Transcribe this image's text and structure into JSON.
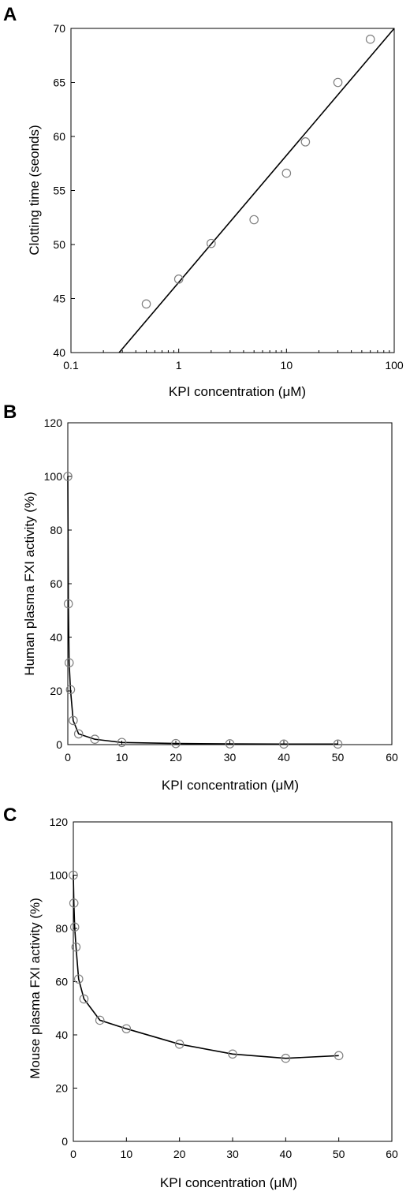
{
  "chart_data": [
    {
      "panel": "A",
      "type": "scatter",
      "xscale": "log",
      "xlabel": "KPI concentration (μM)",
      "ylabel": "Clotting time (seonds)",
      "xlim": [
        0.1,
        100
      ],
      "ylim": [
        40,
        70
      ],
      "xticks": [
        "0.1",
        "1",
        "10",
        "100"
      ],
      "yticks": [
        "40",
        "45",
        "50",
        "55",
        "60",
        "65",
        "70"
      ],
      "points": {
        "x": [
          0.5,
          1,
          2,
          5,
          10,
          15,
          30,
          60
        ],
        "y": [
          44.5,
          46.8,
          50.1,
          52.3,
          56.6,
          59.5,
          65.0,
          69.0
        ]
      },
      "fit_line": {
        "x": [
          0.28,
          100
        ],
        "y": [
          40,
          70
        ]
      }
    },
    {
      "panel": "B",
      "type": "line",
      "xscale": "linear",
      "xlabel": "KPI concentration (μM)",
      "ylabel": "Human plasma FXI activity (%)",
      "xlim": [
        0,
        60
      ],
      "ylim": [
        0,
        120
      ],
      "xticks": [
        "0",
        "10",
        "20",
        "30",
        "40",
        "50",
        "60"
      ],
      "yticks": [
        "0",
        "20",
        "40",
        "60",
        "80",
        "100",
        "120"
      ],
      "points": {
        "x": [
          0,
          0.1,
          0.25,
          0.5,
          1,
          2,
          5,
          10,
          20,
          30,
          40,
          50
        ],
        "y": [
          100,
          52.5,
          30.5,
          20.5,
          9,
          4,
          2,
          0.8,
          0.4,
          0.3,
          0.2,
          0.2
        ]
      }
    },
    {
      "panel": "C",
      "type": "line",
      "xscale": "linear",
      "xlabel": "KPI concentration (μM)",
      "ylabel": "Mouse plasma FXI activity (%)",
      "xlim": [
        0,
        60
      ],
      "ylim": [
        0,
        120
      ],
      "xticks": [
        "0",
        "10",
        "20",
        "30",
        "40",
        "50",
        "60"
      ],
      "yticks": [
        "0",
        "20",
        "40",
        "60",
        "80",
        "100",
        "120"
      ],
      "points": {
        "x": [
          0,
          0.1,
          0.25,
          0.5,
          1,
          2,
          5,
          10,
          20,
          30,
          40,
          50
        ],
        "y": [
          100,
          89.5,
          80.5,
          73,
          61,
          53.5,
          45.5,
          42.3,
          36.5,
          32.8,
          31.2,
          32.2
        ]
      }
    }
  ]
}
